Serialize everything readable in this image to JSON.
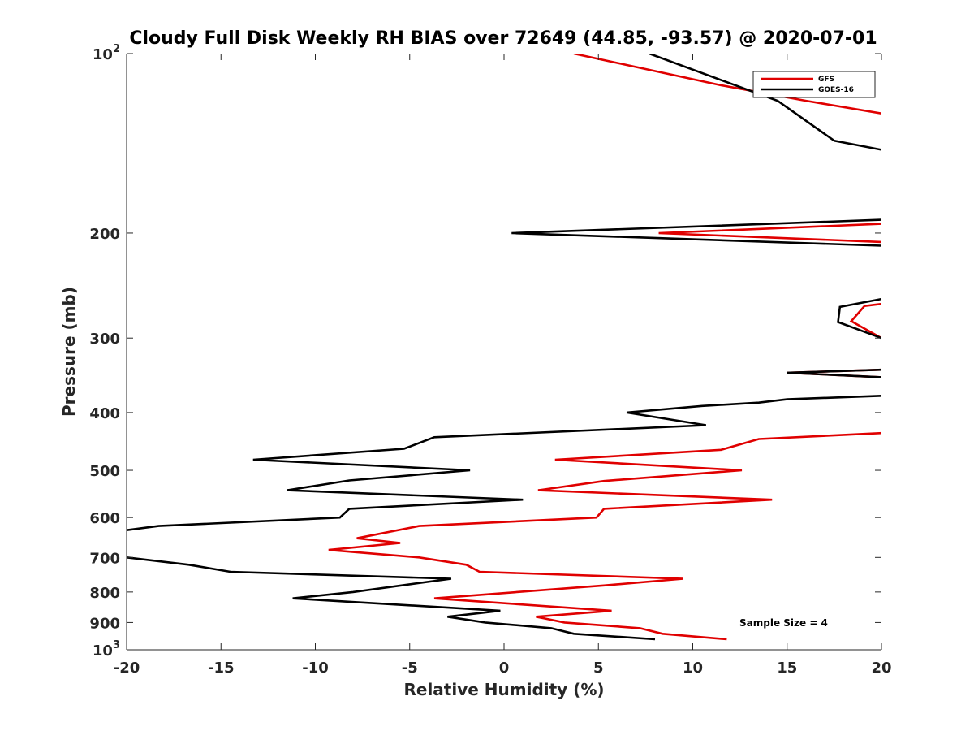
{
  "chart_data": {
    "type": "line",
    "title": "Cloudy Full Disk Weekly RH BIAS over 72649 (44.85, -93.57) @ 2020-07-01",
    "xlabel": "Relative Humidity (%)",
    "ylabel": "Pressure (mb)",
    "xlim": [
      -20,
      20
    ],
    "ylim": [
      100,
      1000
    ],
    "yscale": "log",
    "y_reversed": true,
    "grid": false,
    "legend_position": "top-right",
    "xticks": [
      "-20",
      "-15",
      "-10",
      "-5",
      "0",
      "5",
      "10",
      "15",
      "20"
    ],
    "yticks": [
      {
        "value": 100,
        "base": "10",
        "exp": "2"
      },
      {
        "value": 200,
        "label": "200"
      },
      {
        "value": 300,
        "label": "300"
      },
      {
        "value": 400,
        "label": "400"
      },
      {
        "value": 500,
        "label": "500"
      },
      {
        "value": 600,
        "label": "600"
      },
      {
        "value": 700,
        "label": "700"
      },
      {
        "value": 800,
        "label": "800"
      },
      {
        "value": 900,
        "label": "900"
      },
      {
        "value": 1000,
        "base": "10",
        "exp": "3"
      }
    ],
    "annotation": "Sample Size = 4",
    "series": [
      {
        "name": "GFS",
        "color": "#e00000",
        "points": [
          [
            3.7,
            100
          ],
          [
            11.5,
            113
          ],
          [
            16,
            120
          ],
          [
            20,
            126
          ],
          [
            null,
            null
          ],
          [
            20,
            193
          ],
          [
            8.2,
            200
          ],
          [
            20,
            207
          ],
          [
            null,
            null
          ],
          [
            20,
            263
          ],
          [
            19.1,
            265
          ],
          [
            18.4,
            281
          ],
          [
            20,
            300
          ],
          [
            null,
            null
          ],
          [
            20,
            339
          ],
          [
            15.0,
            343
          ],
          [
            20,
            349
          ],
          [
            null,
            null
          ],
          [
            20,
            433
          ],
          [
            13.5,
            443
          ],
          [
            11.5,
            462
          ],
          [
            2.7,
            480
          ],
          [
            12.6,
            500
          ],
          [
            5.3,
            521
          ],
          [
            1.8,
            540
          ],
          [
            14.2,
            560
          ],
          [
            5.3,
            580
          ],
          [
            4.9,
            600
          ],
          [
            -4.5,
            620
          ],
          [
            -7.8,
            650
          ],
          [
            -5.5,
            662
          ],
          [
            -9.3,
            680
          ],
          [
            -4.5,
            700
          ],
          [
            -2.0,
            720
          ],
          [
            -1.3,
            740
          ],
          [
            9.5,
            760
          ],
          [
            5.3,
            780
          ],
          [
            -3.7,
            820
          ],
          [
            5.7,
            860
          ],
          [
            1.7,
            880
          ],
          [
            3.2,
            900
          ],
          [
            7.2,
            920
          ],
          [
            8.4,
            940
          ],
          [
            11.8,
            960
          ]
        ]
      },
      {
        "name": "GOES-16",
        "color": "#000000",
        "points": [
          [
            7.7,
            100
          ],
          [
            14.5,
            120
          ],
          [
            17.5,
            140
          ],
          [
            20,
            145
          ],
          [
            null,
            null
          ],
          [
            20,
            190
          ],
          [
            0.4,
            200
          ],
          [
            20,
            210
          ],
          [
            null,
            null
          ],
          [
            20,
            258
          ],
          [
            17.8,
            266
          ],
          [
            17.7,
            282
          ],
          [
            20,
            300
          ],
          [
            null,
            null
          ],
          [
            20,
            339
          ],
          [
            15.0,
            343
          ],
          [
            20,
            349
          ],
          [
            null,
            null
          ],
          [
            20,
            375
          ],
          [
            15.0,
            380
          ],
          [
            13.5,
            385
          ],
          [
            10.5,
            390
          ],
          [
            6.5,
            400
          ],
          [
            10.7,
            420
          ],
          [
            -3.7,
            440
          ],
          [
            -5.3,
            460
          ],
          [
            -13.3,
            480
          ],
          [
            -1.8,
            500
          ],
          [
            -8.2,
            520
          ],
          [
            -11.5,
            540
          ],
          [
            1.0,
            560
          ],
          [
            -8.2,
            580
          ],
          [
            -8.7,
            600
          ],
          [
            -18.3,
            620
          ],
          [
            -20,
            630
          ],
          [
            null,
            null
          ],
          [
            -20,
            700
          ],
          [
            -16.7,
            720
          ],
          [
            -14.5,
            740
          ],
          [
            -2.8,
            760
          ],
          [
            -8.0,
            800
          ],
          [
            -11.2,
            820
          ],
          [
            -0.2,
            860
          ],
          [
            -3.0,
            880
          ],
          [
            -1.0,
            900
          ],
          [
            2.5,
            920
          ],
          [
            3.7,
            940
          ],
          [
            8.0,
            960
          ]
        ]
      }
    ]
  }
}
